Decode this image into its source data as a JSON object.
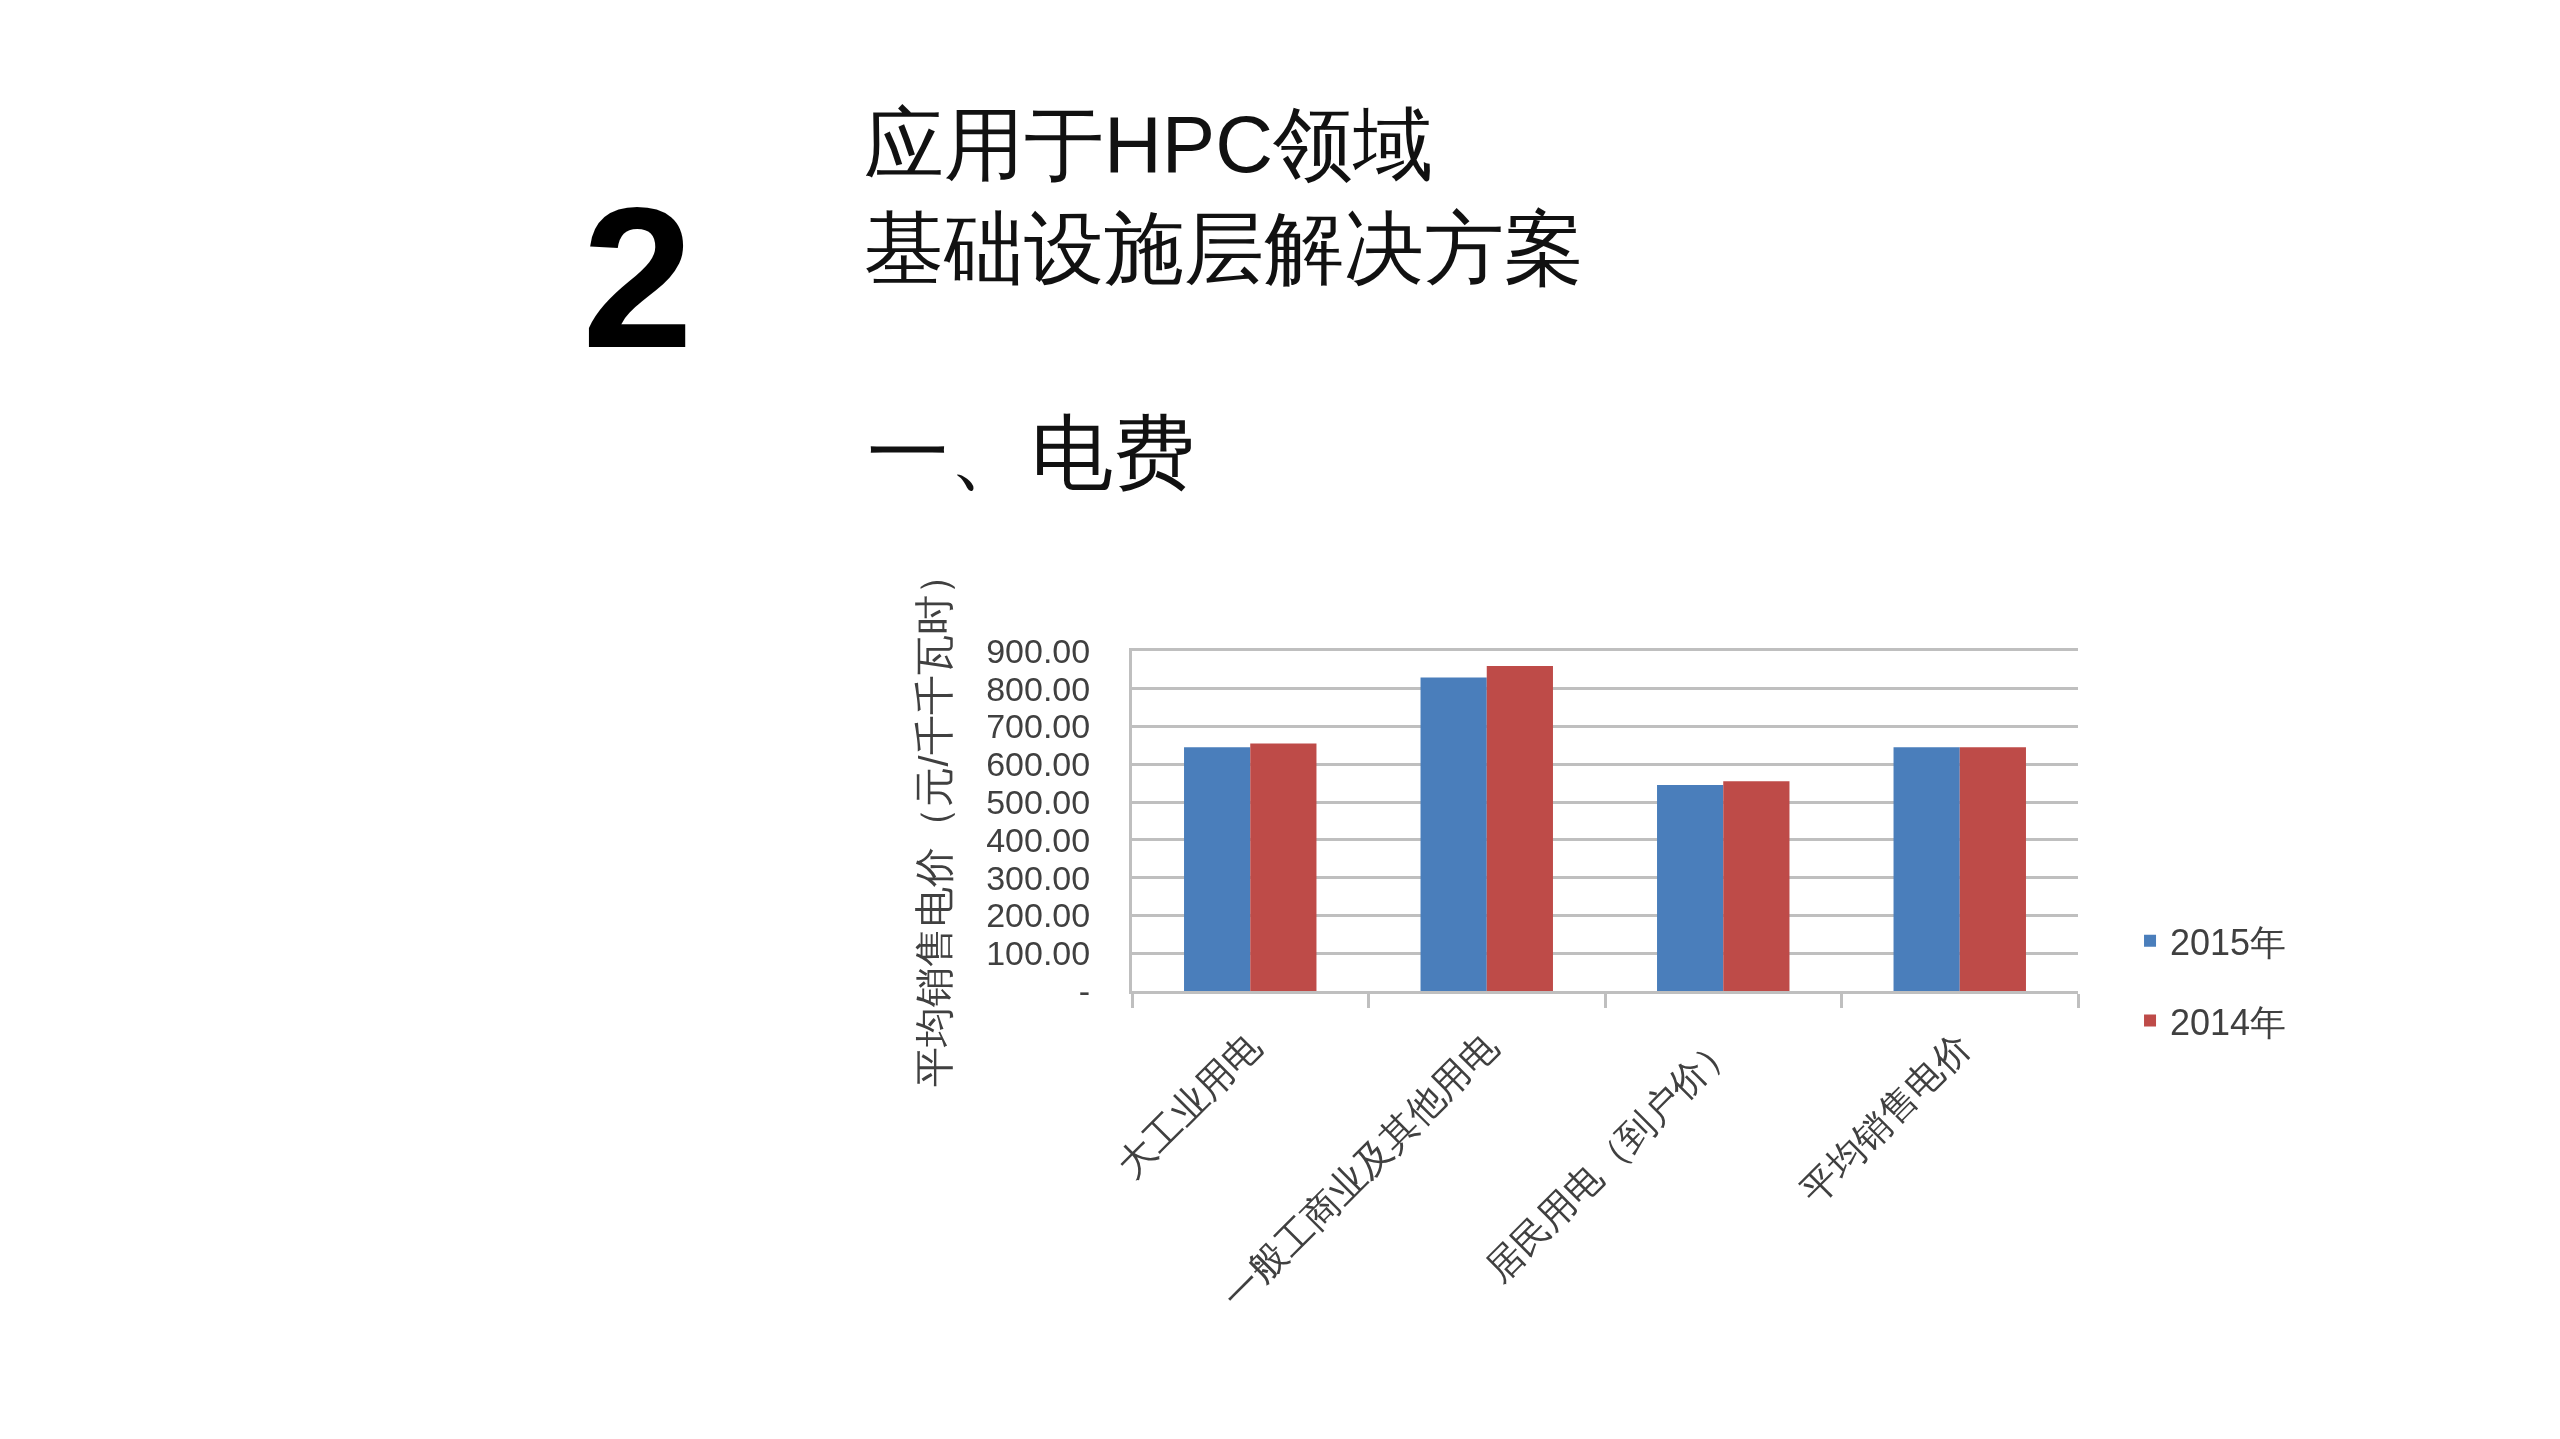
{
  "chart_data": {
    "type": "bar",
    "title": "应用于HPC领域基础设施层解决方案",
    "subtitle": "一、电费",
    "ylabel": "平均销售电价（元/千千瓦时）",
    "annotations": [
      "2"
    ],
    "categories": [
      "大工业用电",
      "一般工商业及其他用电",
      "居民用电（到户价）",
      "平均销售电价"
    ],
    "series": [
      {
        "name": "2015年",
        "color": "#4a7ebb",
        "values": [
          645,
          830,
          545,
          645
        ]
      },
      {
        "name": "2014年",
        "color": "#be4b48",
        "values": [
          655,
          860,
          555,
          645
        ]
      }
    ],
    "ylim": [
      0,
      900
    ],
    "yticks": [
      {
        "value": 0,
        "label": "-"
      },
      {
        "value": 100,
        "label": "100.00"
      },
      {
        "value": 200,
        "label": "200.00"
      },
      {
        "value": 300,
        "label": "300.00"
      },
      {
        "value": 400,
        "label": "400.00"
      },
      {
        "value": 500,
        "label": "500.00"
      },
      {
        "value": 600,
        "label": "600.00"
      },
      {
        "value": 700,
        "label": "700.00"
      },
      {
        "value": 800,
        "label": "800.00"
      },
      {
        "value": 900,
        "label": "900.00"
      }
    ],
    "grid": "y",
    "legend": "right"
  }
}
